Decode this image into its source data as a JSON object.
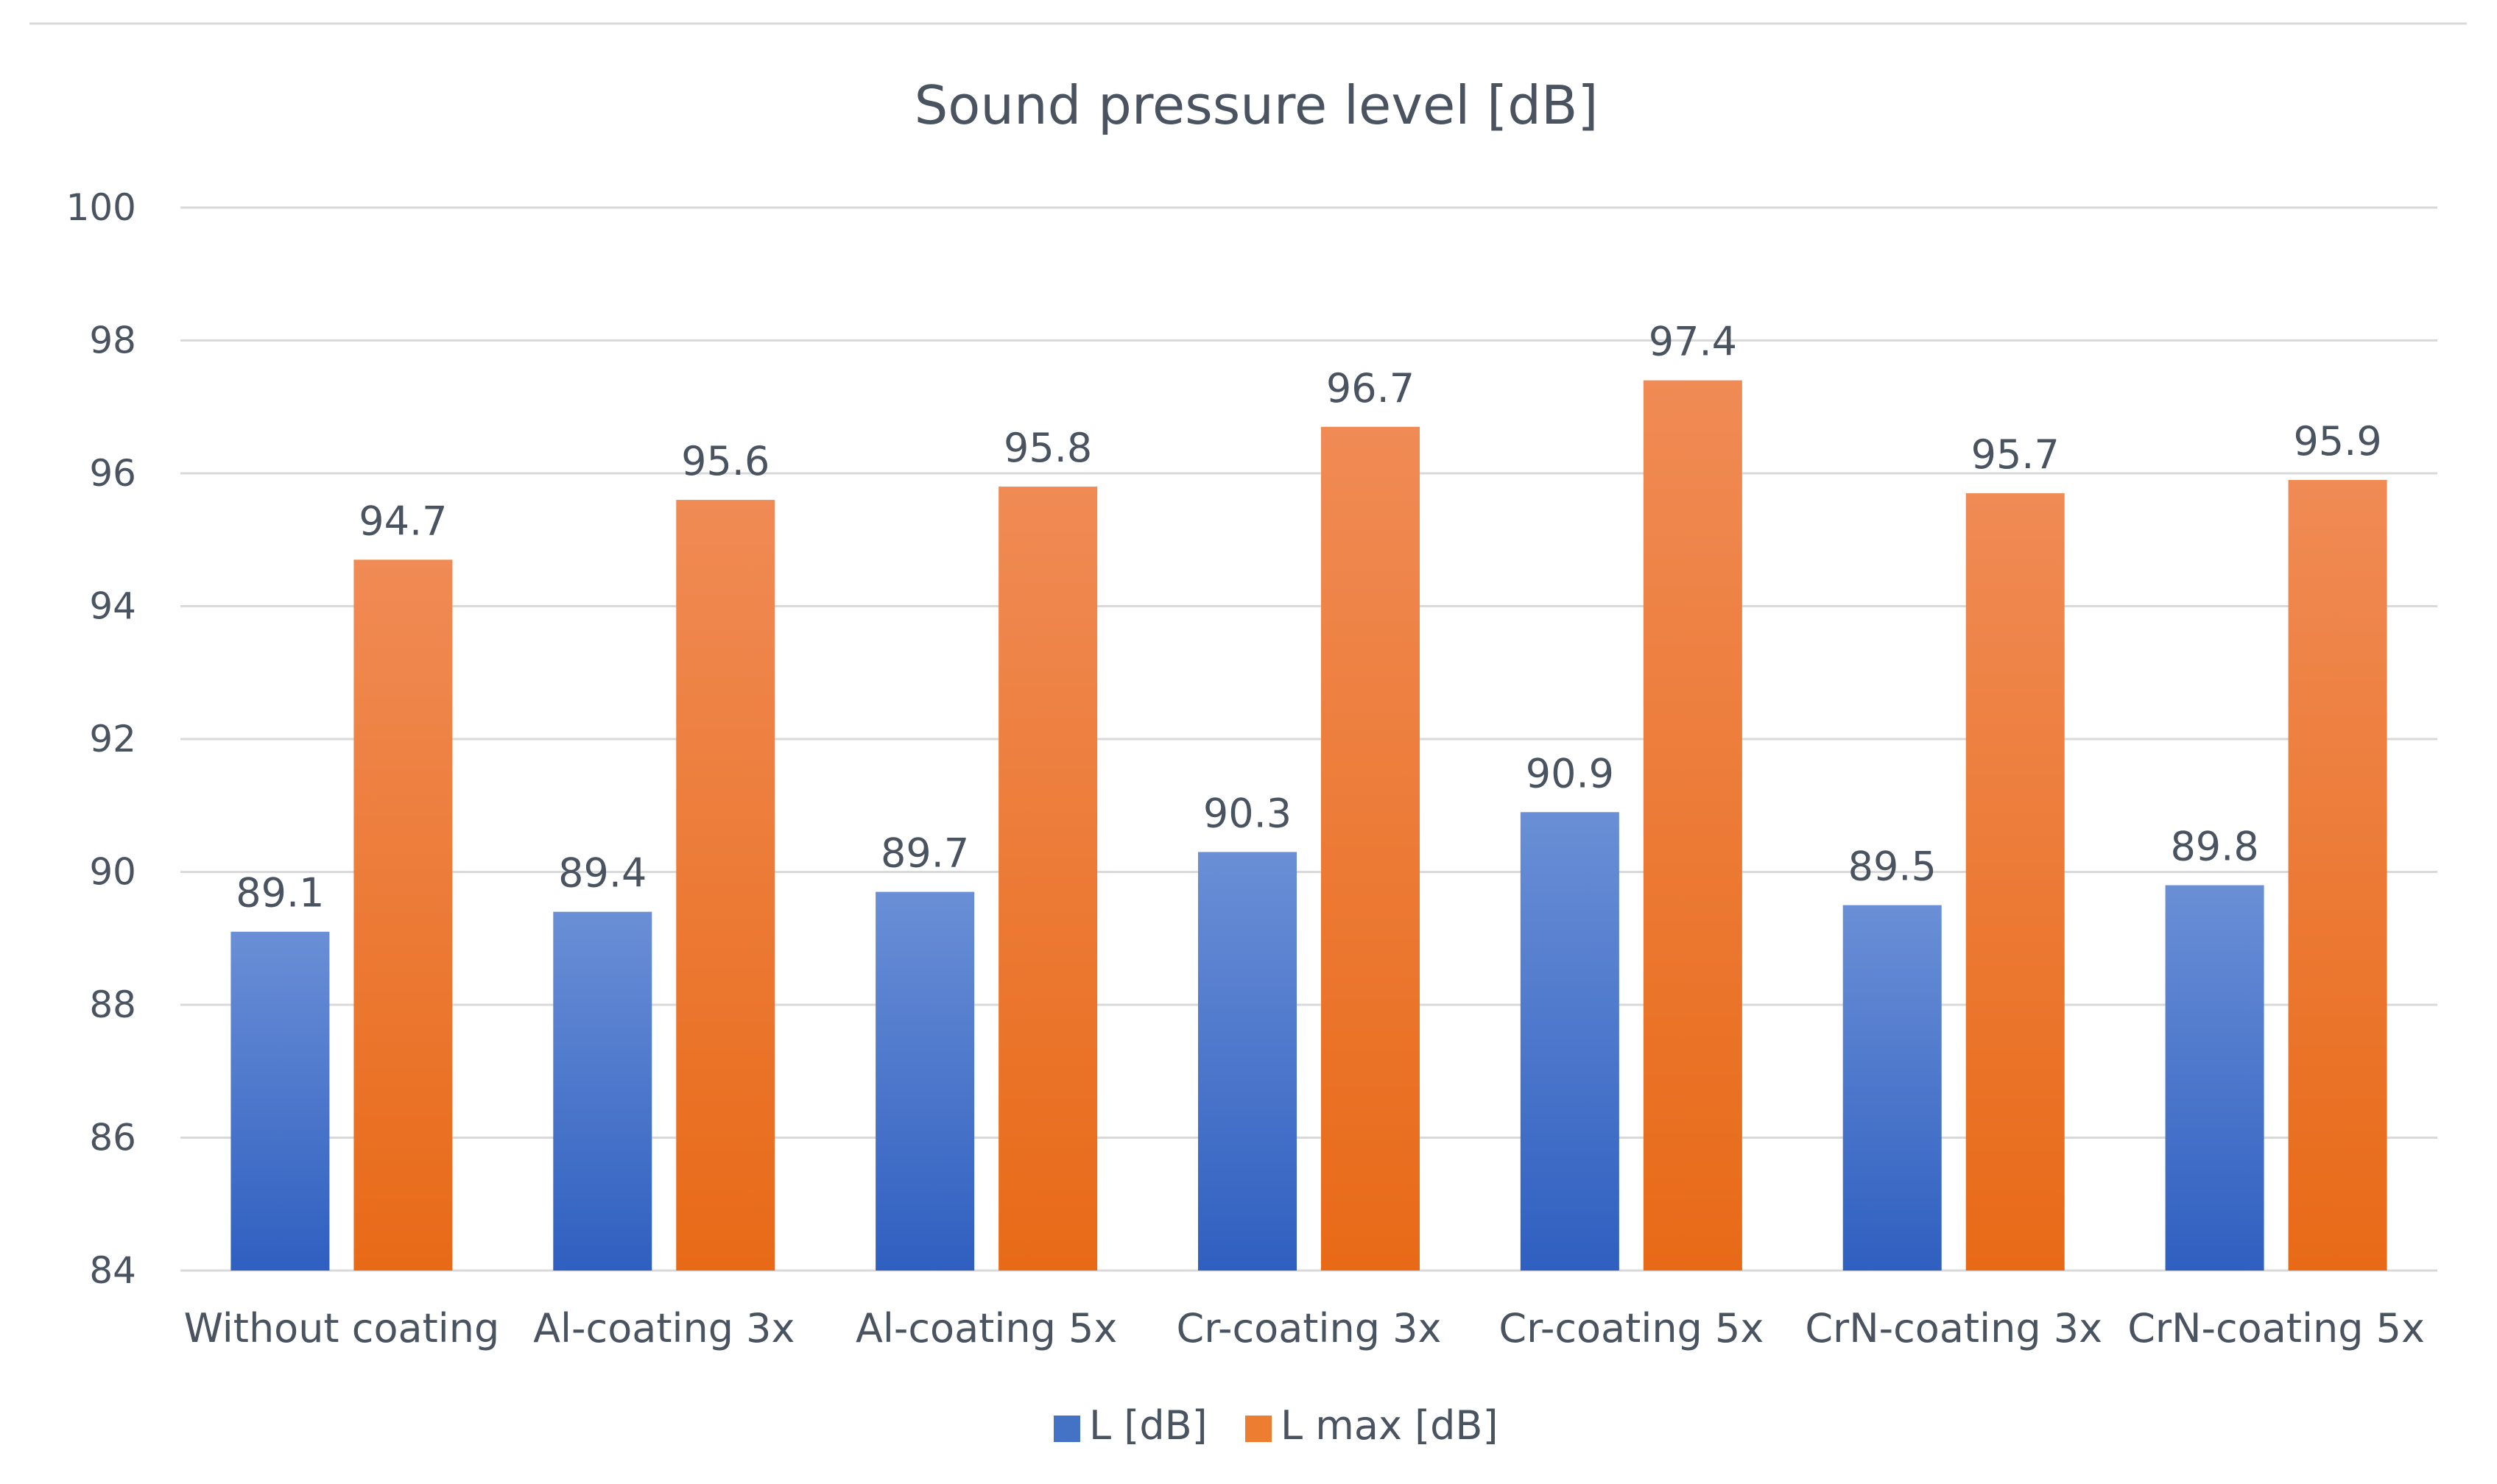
{
  "chart_data": {
    "type": "bar",
    "title": "Sound pressure level [dB]",
    "xlabel": "",
    "ylabel": "",
    "ylim": [
      84,
      100
    ],
    "yticks": [
      84,
      86,
      88,
      90,
      92,
      94,
      96,
      98,
      100
    ],
    "grid": true,
    "legend_position": "bottom",
    "categories": [
      "Without coating",
      "Al-coating 3x",
      "Al-coating 5x",
      "Cr-coating 3x",
      "Cr-coating  5x",
      "CrN-coating 3x",
      "CrN-coating 5x"
    ],
    "series": [
      {
        "name": "L [dB]",
        "color": "#4472c4",
        "color_light": "#6a8fd6",
        "color_dark": "#2f5fc0",
        "values": [
          89.1,
          89.4,
          89.7,
          90.3,
          90.9,
          89.5,
          89.8
        ],
        "labels": [
          "89.1",
          "89.4",
          "89.7",
          "90.3",
          "90.9",
          "89.5",
          "89.8"
        ]
      },
      {
        "name": "L max [dB]",
        "color": "#ed7d31",
        "color_light": "#f08b55",
        "color_dark": "#e86a17",
        "values": [
          94.7,
          95.6,
          95.8,
          96.7,
          97.4,
          95.7,
          95.9
        ],
        "labels": [
          "94.7",
          "95.6",
          "95.8",
          "96.7",
          "97.4",
          "95.7",
          "95.9"
        ]
      }
    ]
  },
  "colors": {
    "text": "#4a5360",
    "grid": "#d9d9d9",
    "top_border": "#d9d9d9"
  }
}
